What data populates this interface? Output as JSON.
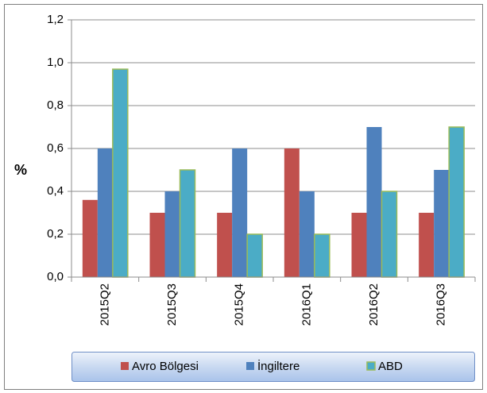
{
  "chart_data": {
    "type": "bar",
    "ylabel": "%",
    "categories": [
      "2015Q2",
      "2015Q3",
      "2015Q4",
      "2016Q1",
      "2016Q2",
      "2016Q3"
    ],
    "series": [
      {
        "name": "Avro Bölgesi",
        "color": "#c0504d",
        "values": [
          0.36,
          0.3,
          0.3,
          0.6,
          0.3,
          0.3
        ]
      },
      {
        "name": "İngiltere",
        "color": "#4f81bd",
        "values": [
          0.6,
          0.4,
          0.6,
          0.4,
          0.7,
          0.5
        ]
      },
      {
        "name": "ABD",
        "color": "#4bacc6",
        "values": [
          0.97,
          0.5,
          0.2,
          0.2,
          0.4,
          0.7
        ]
      }
    ],
    "ylim": [
      0,
      1.2
    ],
    "yticks": [
      {
        "value": 0,
        "label": "0,0"
      },
      {
        "value": 0.2,
        "label": "0,2"
      },
      {
        "value": 0.4,
        "label": "0,4"
      },
      {
        "value": 0.6,
        "label": "0,6"
      },
      {
        "value": 0.8,
        "label": "0,8"
      },
      {
        "value": 1.0,
        "label": "1,0"
      },
      {
        "value": 1.2,
        "label": "1,2"
      }
    ],
    "grid": true,
    "legend": "bottom"
  }
}
